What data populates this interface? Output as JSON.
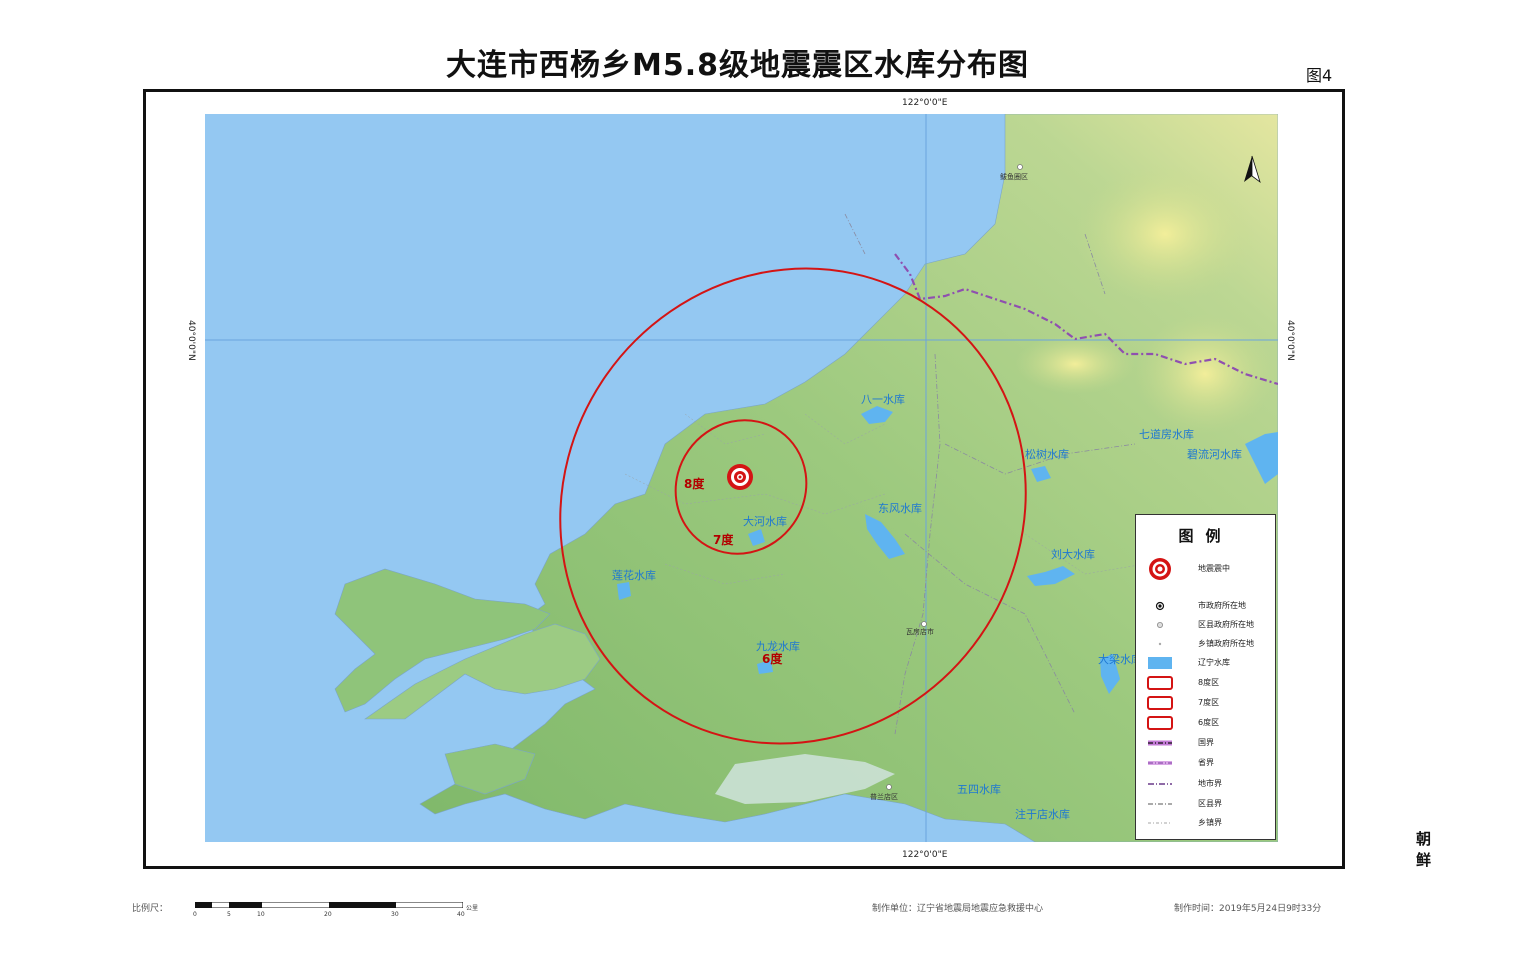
{
  "title": "大连市西杨乡M5.8级地震震区水库分布图",
  "figure_number": "图4",
  "coordinates": {
    "lon_top": "122°0'0\"E",
    "lon_bottom": "122°0'0\"E",
    "lat_left": "40°0'0\"N",
    "lat_right": "40°0'0\"N"
  },
  "intensity_zones": [
    {
      "label": "8度"
    },
    {
      "label": "7度"
    },
    {
      "label": "6度"
    }
  ],
  "reservoirs": [
    {
      "label": "八一水库"
    },
    {
      "label": "大河水库"
    },
    {
      "label": "东风水库"
    },
    {
      "label": "莲花水库"
    },
    {
      "label": "九龙水库"
    },
    {
      "label": "松树水库"
    },
    {
      "label": "七道房水库"
    },
    {
      "label": "碧流河水库"
    },
    {
      "label": "刘大水库"
    },
    {
      "label": "大梁水库"
    },
    {
      "label": "五四水库"
    },
    {
      "label": "注于店水库"
    }
  ],
  "places": [
    {
      "label": "鲅鱼圈区"
    },
    {
      "label": "瓦房店市"
    },
    {
      "label": "普兰店区"
    }
  ],
  "neighbor_label": "朝  鲜",
  "legend": {
    "title": "图例",
    "items": [
      {
        "label": "地震震中",
        "icon": "epicenter-icon"
      },
      {
        "label": "市政府所在地",
        "icon": "city-dot-icon"
      },
      {
        "label": "区县政府所在地",
        "icon": "county-dot-icon"
      },
      {
        "label": "乡镇政府所在地",
        "icon": "town-dot-icon"
      },
      {
        "label": "辽宁水库",
        "icon": "reservoir-swatch-icon"
      },
      {
        "label": "8度区",
        "icon": "zone-box-icon"
      },
      {
        "label": "7度区",
        "icon": "zone-box-icon"
      },
      {
        "label": "6度区",
        "icon": "zone-box-icon"
      },
      {
        "label": "国界",
        "icon": "national-border-icon"
      },
      {
        "label": "省界",
        "icon": "province-border-icon"
      },
      {
        "label": "地市界",
        "icon": "city-border-icon"
      },
      {
        "label": "区县界",
        "icon": "county-border-icon"
      },
      {
        "label": "乡镇界",
        "icon": "town-border-icon"
      }
    ]
  },
  "footer": {
    "scale_label": "比例尺：",
    "scale_ticks": [
      "0",
      "5",
      "10",
      "20",
      "30",
      "40"
    ],
    "scale_unit": "公里",
    "producer": "制作单位：辽宁省地震局地震应急救援中心",
    "made_time": "制作时间：2019年5月24日9时33分"
  },
  "colors": {
    "sea": "#94c8f2",
    "land_low": "#8fc47a",
    "land_high": "#e9ea9c",
    "zone_line": "#d41414",
    "reservoir_label": "#1e78d2",
    "border_purple": "#8f4fb0"
  }
}
